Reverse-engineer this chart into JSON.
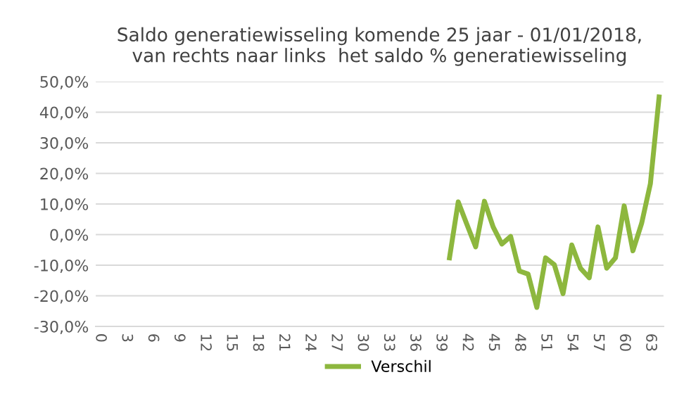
{
  "chart_data": {
    "type": "line",
    "title": "Saldo generatiewisseling komende 25 jaar - 01/01/2018,\nvan rechts naar links  het saldo % generatiewisseling",
    "categories": [
      "0",
      null,
      null,
      "3",
      null,
      null,
      "6",
      null,
      null,
      "9",
      null,
      null,
      "12",
      null,
      null,
      "15",
      null,
      null,
      "18",
      null,
      null,
      "21",
      null,
      null,
      "24",
      null,
      null,
      "27",
      null,
      null,
      "30",
      null,
      null,
      "33",
      null,
      null,
      "36",
      null,
      null,
      "39",
      null,
      null,
      "42",
      null,
      null,
      "45",
      null,
      null,
      "48",
      null,
      null,
      "51",
      null,
      null,
      "54",
      null,
      null,
      "57",
      null,
      null,
      "60",
      null,
      null,
      "63",
      null
    ],
    "series": [
      {
        "name": "Verschil",
        "color": "#8db73e",
        "values": [
          null,
          null,
          null,
          null,
          null,
          null,
          null,
          null,
          null,
          null,
          null,
          null,
          null,
          null,
          null,
          null,
          null,
          null,
          null,
          null,
          null,
          null,
          null,
          null,
          null,
          null,
          null,
          null,
          null,
          null,
          null,
          null,
          null,
          null,
          null,
          null,
          null,
          null,
          null,
          null,
          -7.6,
          10.7,
          3.3,
          -4.0,
          10.9,
          2.5,
          -3.1,
          -0.6,
          -11.9,
          -12.9,
          -23.8,
          -7.6,
          -9.8,
          -19.3,
          -3.4,
          -11.0,
          -14.1,
          2.5,
          -11.0,
          -7.6,
          9.4,
          -5.3,
          3.7,
          16.6,
          45.0
        ]
      }
    ],
    "ylim": [
      -30,
      50
    ],
    "yticks": [
      {
        "value": -30,
        "label": "-30,0%"
      },
      {
        "value": -20,
        "label": "-20,0%"
      },
      {
        "value": -10,
        "label": "-10,0%"
      },
      {
        "value": 0,
        "label": "0,0%"
      },
      {
        "value": 10,
        "label": "10,0%"
      },
      {
        "value": 20,
        "label": "20,0%"
      },
      {
        "value": 30,
        "label": "30,0%"
      },
      {
        "value": 40,
        "label": "40,0%"
      },
      {
        "value": 50,
        "label": "50,0%"
      }
    ],
    "grid": "y",
    "legend": "bottom",
    "marker": "none",
    "line_style": "solid"
  }
}
